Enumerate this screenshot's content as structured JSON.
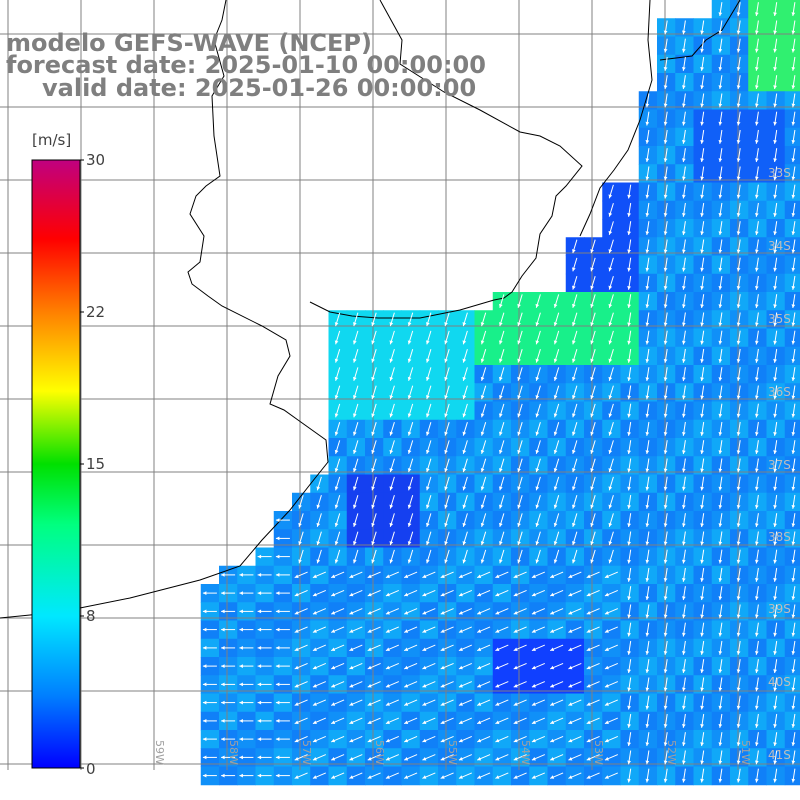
{
  "title": {
    "line1": "modelo GEFS-WAVE (NCEP)",
    "line2": "forecast date: 2025-01-10 00:00:00",
    "line3": "valid date: 2025-01-26 00:00:00"
  },
  "colorbar": {
    "unit": "[m/s]",
    "ticks": [
      "30",
      "22",
      "15",
      "8",
      "0"
    ],
    "min": 0,
    "max": 30,
    "colors": [
      "#0000ff",
      "#0080ff",
      "#00d8ff",
      "#00ff60",
      "#00ff00",
      "#ffff00",
      "#ff8000",
      "#ff0000",
      "#c00080"
    ]
  },
  "map": {
    "field": "wind speed",
    "units": "m/s",
    "land_color": "#ffffff",
    "grid_color": "#808080",
    "coastline_color": "#000000",
    "vector_color": "#ffffff",
    "lat_labels": [
      "33S",
      "34S",
      "35S",
      "36S",
      "37S",
      "38S",
      "39S",
      "40S",
      "41S"
    ],
    "lon_labels": [
      "59W",
      "58W",
      "57W",
      "56W",
      "55W",
      "54W",
      "53W",
      "52W",
      "51W"
    ]
  }
}
